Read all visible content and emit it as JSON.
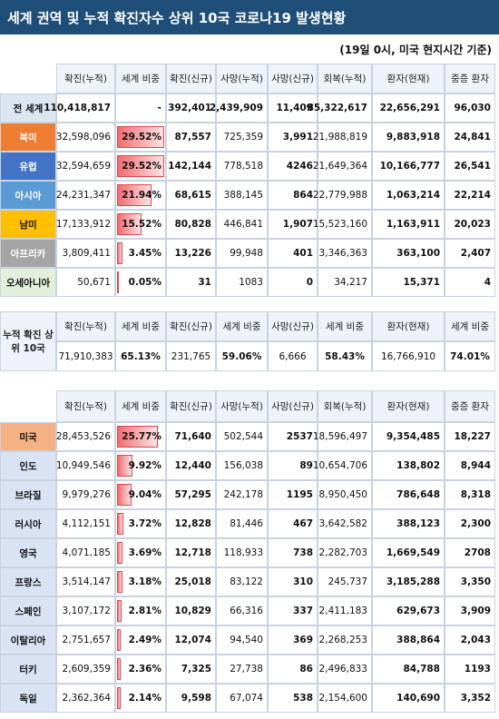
{
  "header": {
    "title": "세계 권역 및 누적 확진자수 상위 10국 코로나19 발생현황",
    "subtitle": "(19일 0시, 미국 현지시간 기준)"
  },
  "regions": {
    "columns": [
      "확진(누적)",
      "세계 비중",
      "확진(신규)",
      "사망(누적)",
      "사망(신규)",
      "회복(누적)",
      "환자(현재)",
      "중증 환자"
    ],
    "rows": [
      {
        "label": "전 세계",
        "cells": [
          "110,418,817",
          "-",
          "392,401",
          "2,439,909",
          "11,409",
          "85,322,617",
          "22,656,291",
          "96,030"
        ]
      },
      {
        "label": "북미",
        "cells": [
          "32,598,096",
          "29.52%",
          "87,557",
          "725,359",
          "3,991",
          "21,988,819",
          "9,883,918",
          "24,841"
        ]
      },
      {
        "label": "유럽",
        "cells": [
          "32,594,659",
          "29.52%",
          "142,144",
          "778,518",
          "4246",
          "21,649,364",
          "10,166,777",
          "26,541"
        ]
      },
      {
        "label": "아시아",
        "cells": [
          "24,231,347",
          "21.94%",
          "68,615",
          "388,145",
          "864",
          "22,779,988",
          "1,063,214",
          "22,214"
        ]
      },
      {
        "label": "남미",
        "cells": [
          "17,133,912",
          "15.52%",
          "80,828",
          "446,841",
          "1,907",
          "15,523,160",
          "1,163,911",
          "20,023"
        ]
      },
      {
        "label": "아프리카",
        "cells": [
          "3,809,411",
          "3.45%",
          "13,226",
          "99,948",
          "401",
          "3,346,363",
          "363,100",
          "2,407"
        ]
      },
      {
        "label": "오세아니아",
        "cells": [
          "50,671",
          "0.05%",
          "31",
          "1083",
          "0",
          "34,217",
          "15,371",
          "4"
        ]
      }
    ]
  },
  "top10": {
    "label": "누적 확진 상위 10국",
    "columns": [
      "확진(누적)",
      "세계 비중",
      "확진(신규)",
      "세계 비중",
      "사망(신규)",
      "세계 비중",
      "환자(현재)",
      "세계 비중"
    ],
    "cells": [
      "71,910,383",
      "65.13%",
      "231,765",
      "59.06%",
      "6,666",
      "58.43%",
      "16,766,910",
      "74.01%"
    ]
  },
  "countries": {
    "columns": [
      "확진(누적)",
      "세계 비중",
      "확진(신규)",
      "사망(누적)",
      "사망(신규)",
      "회복(누적)",
      "환자(현재)",
      "중증 환자"
    ],
    "rows": [
      {
        "label": "미국",
        "cells": [
          "28,453,526",
          "25.77%",
          "71,640",
          "502,544",
          "2537",
          "18,596,497",
          "9,354,485",
          "18,227"
        ]
      },
      {
        "label": "인도",
        "cells": [
          "10,949,546",
          "9.92%",
          "12,440",
          "156,038",
          "89",
          "10,654,706",
          "138,802",
          "8,944"
        ]
      },
      {
        "label": "브라질",
        "cells": [
          "9,979,276",
          "9.04%",
          "57,295",
          "242,178",
          "1195",
          "8,950,450",
          "786,648",
          "8,318"
        ]
      },
      {
        "label": "러시아",
        "cells": [
          "4,112,151",
          "3.72%",
          "12,828",
          "81,446",
          "467",
          "3,642,582",
          "388,123",
          "2,300"
        ]
      },
      {
        "label": "영국",
        "cells": [
          "4,071,185",
          "3.69%",
          "12,718",
          "118,933",
          "738",
          "2,282,703",
          "1,669,549",
          "2708"
        ]
      },
      {
        "label": "프랑스",
        "cells": [
          "3,514,147",
          "3.18%",
          "25,018",
          "83,122",
          "310",
          "245,737",
          "3,185,288",
          "3,350"
        ]
      },
      {
        "label": "스페인",
        "cells": [
          "3,107,172",
          "2.81%",
          "10,829",
          "66,316",
          "337",
          "2,411,183",
          "629,673",
          "3,909"
        ]
      },
      {
        "label": "이탈리아",
        "cells": [
          "2,751,657",
          "2.49%",
          "12,074",
          "94,540",
          "369",
          "2,268,253",
          "388,864",
          "2,043"
        ]
      },
      {
        "label": "터키",
        "cells": [
          "2,609,359",
          "2.36%",
          "7,325",
          "27,738",
          "86",
          "2,496,833",
          "84,788",
          "1193"
        ]
      },
      {
        "label": "독일",
        "cells": [
          "2,362,364",
          "2.14%",
          "9,598",
          "67,074",
          "538",
          "2,154,600",
          "140,690",
          "3,352"
        ]
      }
    ]
  }
}
